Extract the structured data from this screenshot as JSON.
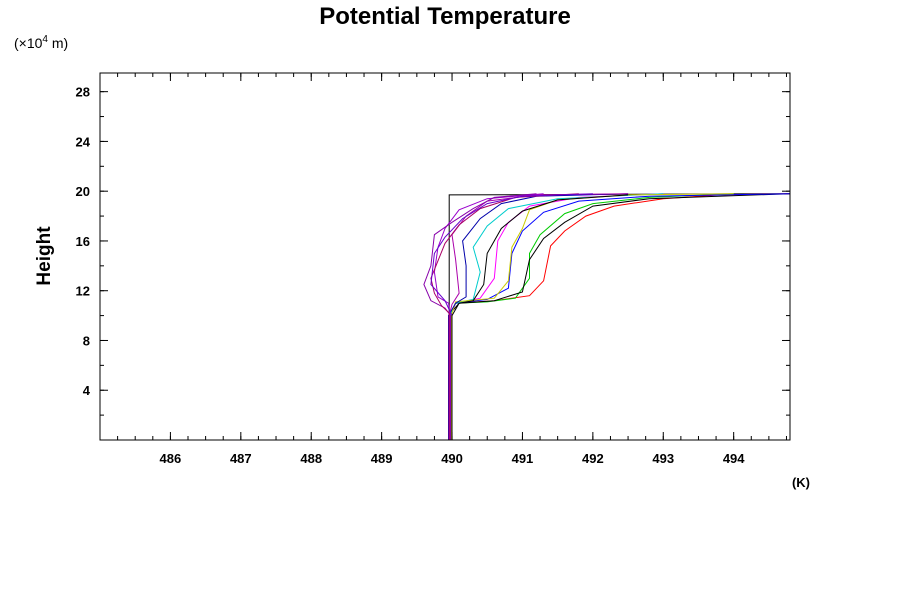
{
  "chart_data": {
    "type": "line",
    "title": "Potential Temperature",
    "ylabel": "Height",
    "yunit_prefix": "(×10",
    "yunit_exp": "4",
    "yunit_suffix": " m)",
    "xunit": "(K)",
    "xlim": [
      485,
      494.8
    ],
    "ylim": [
      0,
      29.5
    ],
    "xticks": [
      486,
      487,
      488,
      489,
      490,
      491,
      492,
      493,
      494
    ],
    "yticks": [
      4,
      8,
      12,
      16,
      20,
      24,
      28
    ],
    "x_minor_step": 0.25,
    "y_minor_step": 2,
    "grid": false,
    "legend": "none",
    "series": [
      {
        "color": "#000000",
        "points": [
          [
            489.96,
            0
          ],
          [
            489.96,
            19.7
          ],
          [
            494.8,
            19.8
          ]
        ]
      },
      {
        "color": "#ff0000",
        "points": [
          [
            490.0,
            0
          ],
          [
            489.98,
            10
          ],
          [
            490.05,
            11
          ],
          [
            490.6,
            11.2
          ],
          [
            491.1,
            11.6
          ],
          [
            491.3,
            12.8
          ],
          [
            491.4,
            15.6
          ],
          [
            491.6,
            16.8
          ],
          [
            491.9,
            18.0
          ],
          [
            492.3,
            18.8
          ],
          [
            493.0,
            19.4
          ],
          [
            493.8,
            19.7
          ],
          [
            494.8,
            19.8
          ]
        ]
      },
      {
        "color": "#00cc00",
        "points": [
          [
            489.97,
            0
          ],
          [
            489.97,
            10
          ],
          [
            490.05,
            11
          ],
          [
            490.5,
            11.1
          ],
          [
            490.9,
            11.4
          ],
          [
            491.1,
            13.0
          ],
          [
            491.1,
            15.0
          ],
          [
            491.25,
            16.5
          ],
          [
            491.6,
            18.2
          ],
          [
            492.0,
            19.0
          ],
          [
            492.8,
            19.5
          ],
          [
            494.0,
            19.8
          ]
        ]
      },
      {
        "color": "#000000",
        "points": [
          [
            489.95,
            0
          ],
          [
            489.95,
            10
          ],
          [
            490.1,
            11
          ],
          [
            490.6,
            11.2
          ],
          [
            491.0,
            11.9
          ],
          [
            491.1,
            14.5
          ],
          [
            491.3,
            16.2
          ],
          [
            491.6,
            17.5
          ],
          [
            492.0,
            18.8
          ],
          [
            492.8,
            19.4
          ],
          [
            494.8,
            19.8
          ]
        ]
      },
      {
        "color": "#0000ff",
        "points": [
          [
            489.96,
            0
          ],
          [
            489.96,
            10
          ],
          [
            490.05,
            11
          ],
          [
            490.5,
            11.3
          ],
          [
            490.8,
            12.2
          ],
          [
            490.85,
            15.0
          ],
          [
            491.0,
            16.8
          ],
          [
            491.3,
            18.3
          ],
          [
            491.8,
            19.2
          ],
          [
            492.8,
            19.6
          ],
          [
            494.8,
            19.8
          ]
        ]
      },
      {
        "color": "#ff00ff",
        "points": [
          [
            489.98,
            0
          ],
          [
            489.98,
            10
          ],
          [
            490.05,
            11
          ],
          [
            490.4,
            11.4
          ],
          [
            490.6,
            13.0
          ],
          [
            490.65,
            16.0
          ],
          [
            490.8,
            17.5
          ],
          [
            491.1,
            18.8
          ],
          [
            491.8,
            19.5
          ],
          [
            493.0,
            19.8
          ]
        ]
      },
      {
        "color": "#00cccc",
        "points": [
          [
            489.97,
            0
          ],
          [
            489.97,
            10
          ],
          [
            490.05,
            11
          ],
          [
            490.3,
            11.3
          ],
          [
            490.4,
            13.5
          ],
          [
            490.3,
            15.5
          ],
          [
            490.5,
            17.2
          ],
          [
            490.8,
            18.6
          ],
          [
            491.5,
            19.4
          ],
          [
            493.0,
            19.8
          ]
        ]
      },
      {
        "color": "#cccc00",
        "points": [
          [
            489.99,
            0
          ],
          [
            489.99,
            10
          ],
          [
            490.05,
            11.1
          ],
          [
            490.6,
            11.4
          ],
          [
            490.8,
            12.8
          ],
          [
            490.85,
            15.5
          ],
          [
            491.0,
            17.0
          ],
          [
            491.1,
            18.5
          ],
          [
            491.5,
            19.3
          ],
          [
            492.5,
            19.7
          ],
          [
            494.0,
            19.8
          ]
        ]
      },
      {
        "color": "#0000aa",
        "points": [
          [
            489.95,
            0
          ],
          [
            489.95,
            10
          ],
          [
            490.05,
            11
          ],
          [
            490.2,
            11.5
          ],
          [
            490.2,
            14.0
          ],
          [
            490.15,
            16.0
          ],
          [
            490.4,
            17.8
          ],
          [
            490.7,
            19.0
          ],
          [
            491.2,
            19.6
          ],
          [
            492.5,
            19.8
          ]
        ]
      },
      {
        "color": "#aa00aa",
        "points": [
          [
            489.96,
            0
          ],
          [
            489.96,
            10
          ],
          [
            490.0,
            10.9
          ],
          [
            490.1,
            11.8
          ],
          [
            490.05,
            14.5
          ],
          [
            490.0,
            16.5
          ],
          [
            490.2,
            18.0
          ],
          [
            490.5,
            19.2
          ],
          [
            491.2,
            19.7
          ],
          [
            492.5,
            19.8
          ]
        ]
      },
      {
        "color": "#9900cc",
        "points": [
          [
            489.97,
            0
          ],
          [
            489.97,
            10
          ],
          [
            489.95,
            11.0
          ],
          [
            489.8,
            11.5
          ],
          [
            489.75,
            13.5
          ],
          [
            489.8,
            15.5
          ],
          [
            489.9,
            17.0
          ],
          [
            490.1,
            18.5
          ],
          [
            490.5,
            19.4
          ],
          [
            491.3,
            19.8
          ]
        ]
      },
      {
        "color": "#8800aa",
        "points": [
          [
            489.98,
            0
          ],
          [
            489.98,
            10
          ],
          [
            489.9,
            10.6
          ],
          [
            489.7,
            11.2
          ],
          [
            489.6,
            12.5
          ],
          [
            489.7,
            14.0
          ],
          [
            489.75,
            16.5
          ],
          [
            490.0,
            17.5
          ],
          [
            490.3,
            18.6
          ],
          [
            490.6,
            19.5
          ],
          [
            491.2,
            19.8
          ]
        ]
      },
      {
        "color": "#aa0066",
        "points": [
          [
            489.96,
            0
          ],
          [
            489.96,
            10.2
          ],
          [
            489.85,
            10.8
          ],
          [
            489.75,
            11.8
          ],
          [
            489.7,
            13.0
          ],
          [
            489.9,
            15.8
          ],
          [
            490.1,
            17.3
          ],
          [
            490.4,
            18.6
          ],
          [
            490.9,
            19.5
          ],
          [
            491.8,
            19.8
          ]
        ]
      },
      {
        "color": "#6600cc",
        "points": [
          [
            490.0,
            0
          ],
          [
            490.0,
            10
          ],
          [
            489.9,
            11.2
          ],
          [
            489.7,
            12.5
          ],
          [
            489.75,
            15.0
          ],
          [
            489.9,
            16.3
          ],
          [
            490.15,
            17.8
          ],
          [
            490.5,
            19.0
          ],
          [
            491.0,
            19.6
          ],
          [
            492.0,
            19.8
          ]
        ]
      },
      {
        "color": "#000000",
        "points": [
          [
            490.0,
            0
          ],
          [
            490.0,
            10
          ],
          [
            490.1,
            11.0
          ],
          [
            490.3,
            11.2
          ],
          [
            490.45,
            12.5
          ],
          [
            490.5,
            15.0
          ],
          [
            490.7,
            17.0
          ],
          [
            491.0,
            18.4
          ],
          [
            491.5,
            19.3
          ],
          [
            492.5,
            19.7
          ]
        ]
      }
    ]
  }
}
